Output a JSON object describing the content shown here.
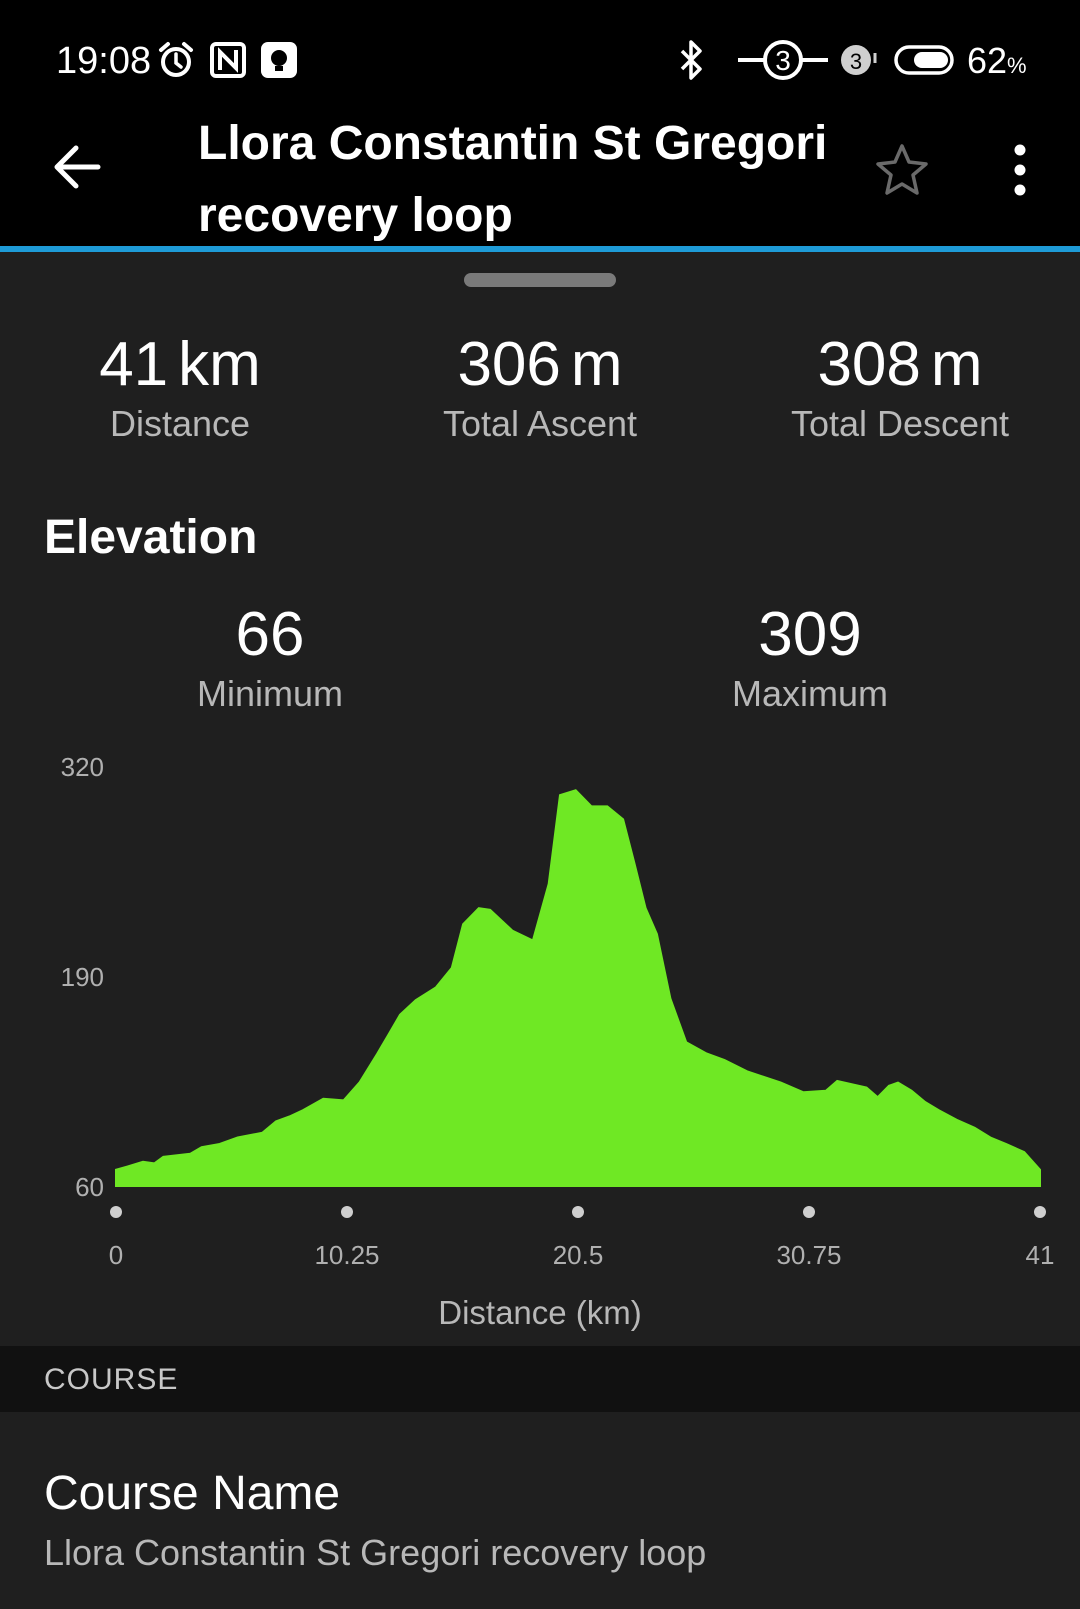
{
  "status_bar": {
    "time": "19:08",
    "battery_percent": "62",
    "battery_suffix": "%",
    "sim_badge": "3",
    "icons": [
      "alarm-icon",
      "nfc-icon",
      "notification-icon",
      "bluetooth-icon",
      "ring-3-icon",
      "sim-3-icon",
      "battery-icon"
    ]
  },
  "header": {
    "title": "Llora Constantin St Gregori recovery loop",
    "icons": [
      "back-arrow-icon",
      "star-icon",
      "more-vert-icon"
    ]
  },
  "summary": {
    "distance": {
      "value": "41",
      "unit": "km",
      "label": "Distance"
    },
    "ascent": {
      "value": "306",
      "unit": "m",
      "label": "Total Ascent"
    },
    "descent": {
      "value": "308",
      "unit": "m",
      "label": "Total Descent"
    }
  },
  "elevation": {
    "section_title": "Elevation",
    "minimum": {
      "value": "66",
      "label": "Minimum"
    },
    "maximum": {
      "value": "309",
      "label": "Maximum"
    }
  },
  "chart_data": {
    "type": "area",
    "title": "Elevation",
    "xlabel": "Distance (km)",
    "ylabel": "",
    "xlim": [
      0,
      41
    ],
    "ylim": [
      60,
      320
    ],
    "y_ticks": [
      "320",
      "190",
      "60"
    ],
    "x_ticks": [
      "0",
      "10.25",
      "20.5",
      "30.75",
      "41"
    ],
    "color": "#6fe824",
    "series": [
      {
        "name": "Elevation",
        "x": [
          0,
          0.5,
          1.2,
          1.7,
          2.1,
          3.3,
          3.8,
          4.6,
          5.4,
          6.5,
          7.1,
          7.7,
          8.3,
          9.2,
          10.1,
          10.8,
          11.6,
          12.1,
          12.6,
          13.3,
          14.2,
          14.9,
          15.4,
          16.1,
          16.6,
          17.6,
          18.5,
          19.2,
          19.7,
          20.4,
          21.1,
          21.8,
          22.5,
          23.0,
          23.5,
          24.0,
          24.6,
          25.3,
          26.2,
          27.0,
          28.0,
          29.5,
          30.5,
          31.5,
          32.0,
          33.3,
          33.8,
          34.3,
          34.7,
          35.3,
          35.9,
          36.5,
          37.3,
          38.1,
          38.8,
          39.5,
          40.3,
          41
        ],
        "y": [
          70,
          72,
          75,
          74,
          78,
          80,
          84,
          86,
          90,
          93,
          100,
          103,
          107,
          114,
          113,
          124,
          142,
          154,
          166,
          175,
          183,
          195,
          222,
          232,
          231,
          218,
          212,
          247,
          302,
          305,
          295,
          295,
          287,
          260,
          232,
          216,
          176,
          149,
          142,
          138,
          131,
          124,
          118,
          119,
          125,
          121,
          115,
          122,
          124,
          119,
          112,
          107,
          101,
          96,
          90,
          86,
          81,
          70
        ]
      }
    ]
  },
  "course_section": {
    "header_label": "COURSE",
    "name_title": "Course Name",
    "name_value": "Llora Constantin St Gregori recovery loop"
  }
}
